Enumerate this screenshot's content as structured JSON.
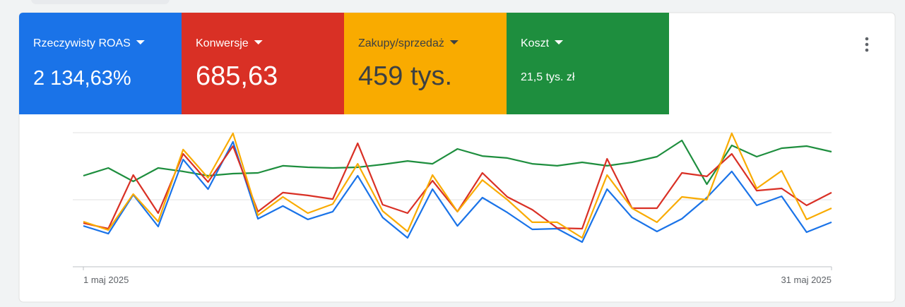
{
  "chart_data": {
    "type": "line",
    "categories": [
      "1 maj 2025",
      null,
      null,
      null,
      null,
      null,
      null,
      null,
      null,
      null,
      null,
      null,
      null,
      null,
      null,
      null,
      null,
      null,
      null,
      null,
      null,
      null,
      null,
      null,
      null,
      null,
      null,
      null,
      null,
      null,
      "31 maj 2025"
    ],
    "ylim": [
      0,
      100
    ],
    "gridlines": [
      0,
      50,
      100
    ],
    "series": [
      {
        "name": "Rzeczywisty ROAS",
        "value": "2 134,63%",
        "color": "#1a73e8",
        "text_color": "#ffffff",
        "values": [
          30.5,
          24.7,
          53.7,
          30,
          80,
          57.9,
          93.2,
          35.8,
          45.3,
          35.3,
          41.1,
          67.9,
          36.8,
          21.6,
          57.9,
          30.5,
          51.6,
          40.5,
          27.9,
          28.4,
          18.4,
          57.9,
          36.8,
          26.3,
          35.8,
          51.6,
          71.1,
          45.8,
          52.6,
          25.8,
          33.2
        ]
      },
      {
        "name": "Konwersje",
        "value": "685,63",
        "color": "#d93025",
        "text_color": "#ffffff",
        "values": [
          32.6,
          28.4,
          68.4,
          40,
          84.2,
          63.2,
          90,
          41.1,
          55.3,
          53.2,
          50.5,
          92.1,
          46.3,
          40,
          64.2,
          41.1,
          70,
          52.1,
          42.6,
          28.9,
          28.4,
          80.5,
          43.7,
          43.7,
          70,
          67.4,
          84.2,
          56.8,
          58.4,
          45.8,
          55.3
        ]
      },
      {
        "name": "Zakupy/sprzedaż",
        "value": "459 tys.",
        "color": "#f9ab00",
        "text_color": "#3c4043",
        "values": [
          33.7,
          27.4,
          54.2,
          33.7,
          87.4,
          66.3,
          99.5,
          38.4,
          52.1,
          40,
          46.8,
          76.8,
          41.6,
          26.3,
          68.4,
          41.1,
          64.7,
          50,
          33.2,
          33.2,
          21.6,
          68.4,
          43.7,
          33.2,
          52.1,
          50,
          99.5,
          58.4,
          71.6,
          35.3,
          43.7
        ]
      },
      {
        "name": "Koszt",
        "value": "21,5 tys. zł",
        "color": "#1e8e3e",
        "text_color": "#ffffff",
        "values": [
          67.9,
          73.7,
          63.7,
          73.7,
          71.1,
          67.9,
          69.5,
          70,
          75.3,
          74.2,
          73.7,
          74.2,
          76.3,
          78.9,
          76.8,
          87.9,
          82.6,
          81.1,
          76.8,
          75.3,
          77.9,
          75.3,
          77.9,
          82.1,
          94.2,
          61.6,
          90.5,
          82.1,
          88.4,
          90,
          85.8
        ]
      }
    ]
  }
}
